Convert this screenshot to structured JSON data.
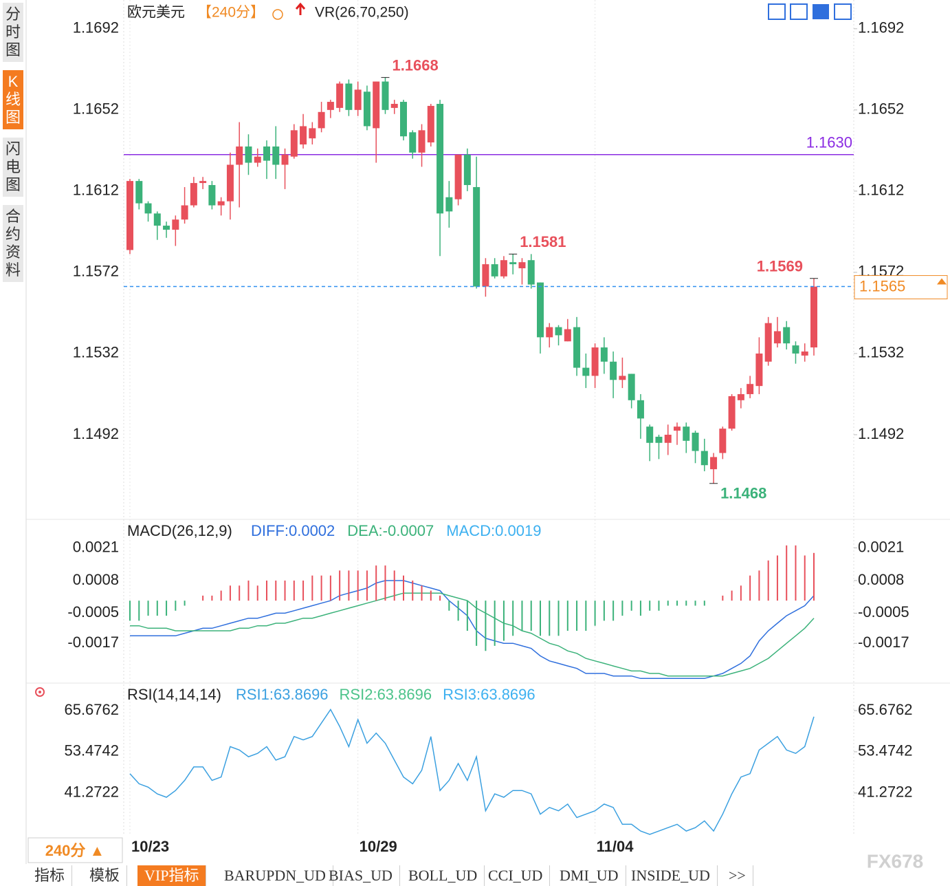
{
  "chart_data": [
    {
      "type": "candlestick",
      "title": "欧元美元",
      "period": "【240分】",
      "indicator": "VR(26,70,250)",
      "up_color": "#e8505b",
      "down_color": "#3bb27a",
      "ylim": [
        1.1452,
        1.1696
      ],
      "yticks": [
        1.1692,
        1.1652,
        1.1612,
        1.1572,
        1.1532,
        1.1492
      ],
      "categories": [
        "10/23",
        null,
        null,
        null,
        null,
        null,
        null,
        null,
        null,
        null,
        null,
        null,
        null,
        null,
        null,
        null,
        null,
        null,
        null,
        null,
        null,
        null,
        null,
        null,
        null,
        "10/29",
        null,
        null,
        null,
        null,
        null,
        null,
        null,
        null,
        null,
        null,
        null,
        null,
        null,
        null,
        null,
        null,
        null,
        null,
        null,
        null,
        null,
        null,
        null,
        null,
        null,
        "11/04",
        null,
        null,
        null,
        null,
        null,
        null,
        null,
        null,
        null,
        null,
        null,
        null,
        null,
        null,
        null,
        null,
        null,
        null,
        null,
        null,
        null,
        null,
        null,
        null
      ],
      "open": [
        1.1583,
        1.1617,
        1.1606,
        1.1601,
        1.1595,
        1.1593,
        1.1598,
        1.1605,
        1.1616,
        1.1615,
        1.1605,
        1.1607,
        1.1625,
        1.1634,
        1.1626,
        1.1634,
        1.1634,
        1.1625,
        1.1629,
        1.1635,
        1.1638,
        1.1643,
        1.1652,
        1.1653,
        1.1665,
        1.1652,
        1.1661,
        1.1643,
        1.1666,
        1.1653,
        1.1656,
        1.1641,
        1.1631,
        1.1636,
        1.1655,
        1.1609,
        1.1608,
        1.163,
        1.1614,
        1.1565,
        1.1576,
        1.157,
        1.1577,
        1.1574,
        1.1578,
        1.1567,
        1.154,
        1.1545,
        1.1538,
        1.1545,
        1.1525,
        1.1521,
        1.1535,
        1.1528,
        1.1519,
        1.1522,
        1.1509,
        1.1496,
        1.1491,
        1.1488,
        1.1494,
        1.1496,
        1.1493,
        1.1484,
        1.1475,
        1.1483,
        1.1495,
        1.1509,
        1.1512,
        1.1516,
        1.1528,
        1.1537,
        1.1545,
        1.1536,
        1.1531,
        1.1535
      ],
      "high": [
        1.1618,
        1.1618,
        1.1607,
        1.1602,
        1.1597,
        1.16,
        1.1614,
        1.1619,
        1.1619,
        1.1617,
        1.1609,
        1.1631,
        1.1646,
        1.164,
        1.1633,
        1.1637,
        1.1644,
        1.1633,
        1.1645,
        1.165,
        1.1646,
        1.1656,
        1.1657,
        1.1666,
        1.1667,
        1.1666,
        1.1664,
        1.1666,
        1.1668,
        1.1657,
        1.1657,
        1.1642,
        1.1645,
        1.1655,
        1.1657,
        1.1617,
        1.163,
        1.1633,
        1.1629,
        1.1579,
        1.1579,
        1.158,
        1.1581,
        1.1579,
        1.1581,
        1.1567,
        1.1547,
        1.1546,
        1.1549,
        1.155,
        1.1532,
        1.1537,
        1.154,
        1.1533,
        1.153,
        1.1522,
        1.1512,
        1.1497,
        1.1492,
        1.1497,
        1.1498,
        1.1498,
        1.1494,
        1.149,
        1.1483,
        1.1496,
        1.1512,
        1.1515,
        1.1521,
        1.154,
        1.155,
        1.155,
        1.1548,
        1.1538,
        1.1537,
        1.1569
      ],
      "low": [
        1.1581,
        1.1603,
        1.1597,
        1.1588,
        1.1589,
        1.1585,
        1.1596,
        1.1604,
        1.1613,
        1.1603,
        1.16,
        1.1598,
        1.1604,
        1.162,
        1.1624,
        1.1618,
        1.1618,
        1.1613,
        1.1628,
        1.1633,
        1.1635,
        1.1641,
        1.1648,
        1.1651,
        1.1649,
        1.1649,
        1.1642,
        1.1626,
        1.165,
        1.165,
        1.1637,
        1.1628,
        1.1624,
        1.1634,
        1.158,
        1.1594,
        1.1605,
        1.1612,
        1.1564,
        1.156,
        1.1569,
        1.1569,
        1.1571,
        1.1566,
        1.1564,
        1.1532,
        1.1535,
        1.1536,
        1.1538,
        1.1521,
        1.1515,
        1.1515,
        1.1522,
        1.151,
        1.1515,
        1.1505,
        1.149,
        1.1479,
        1.148,
        1.1482,
        1.1487,
        1.1483,
        1.1478,
        1.1474,
        1.1468,
        1.148,
        1.1494,
        1.1505,
        1.151,
        1.1512,
        1.1526,
        1.1535,
        1.1534,
        1.1527,
        1.1528,
        1.1531
      ],
      "close": [
        1.1617,
        1.1606,
        1.1601,
        1.1595,
        1.1593,
        1.1598,
        1.1605,
        1.1616,
        1.1617,
        1.1605,
        1.1607,
        1.1625,
        1.1634,
        1.1626,
        1.1629,
        1.1627,
        1.1625,
        1.163,
        1.1642,
        1.1644,
        1.1643,
        1.1651,
        1.1656,
        1.1665,
        1.1652,
        1.1662,
        1.1644,
        1.1666,
        1.1652,
        1.1655,
        1.1639,
        1.1631,
        1.1642,
        1.1654,
        1.1601,
        1.1602,
        1.163,
        1.1615,
        1.1565,
        1.1576,
        1.157,
        1.1578,
        1.1576,
        1.1577,
        1.1566,
        1.154,
        1.1545,
        1.1541,
        1.1544,
        1.1525,
        1.1521,
        1.1535,
        1.1528,
        1.1519,
        1.1521,
        1.1509,
        1.15,
        1.1488,
        1.1488,
        1.1492,
        1.1496,
        1.1489,
        1.1484,
        1.1477,
        1.1481,
        1.1495,
        1.1511,
        1.1512,
        1.1517,
        1.1532,
        1.1547,
        1.1543,
        1.1537,
        1.1532,
        1.1533,
        1.1565
      ],
      "extreme_labels": [
        1.1668,
        1.1581,
        1.1468,
        1.1569
      ],
      "reference_line": {
        "value": 1.163,
        "label": "1.1630"
      },
      "reference_color": "#8a2be2",
      "last_price": 1.1565,
      "last_color": "#f08a24"
    },
    {
      "type": "macd",
      "title": "MACD(26,12,9)",
      "ylim": [
        -0.0032,
        0.0031
      ],
      "yticks": [
        0.0021,
        0.0008,
        -0.0005,
        -0.0017
      ],
      "up_color": "#e8505b",
      "down_color": "#3bb27a",
      "series": [
        {
          "name": "DIFF:0.0002",
          "type": "line",
          "color": "#2f6fdd",
          "values": [
            -0.0014,
            -0.0014,
            -0.0014,
            -0.0014,
            -0.0014,
            -0.0014,
            -0.0013,
            -0.0012,
            -0.0011,
            -0.0011,
            -0.001,
            -0.0009,
            -0.0008,
            -0.0007,
            -0.0007,
            -0.0006,
            -0.0005,
            -0.0005,
            -0.0004,
            -0.0003,
            -0.0002,
            -0.0001,
            0,
            0.0002,
            0.0003,
            0.0004,
            0.0005,
            0.0007,
            0.0008,
            0.0008,
            0.0008,
            0.0007,
            0.0006,
            0.0005,
            0.0004,
            0,
            -0.0003,
            -0.0006,
            -0.0012,
            -0.0015,
            -0.0016,
            -0.0017,
            -0.0017,
            -0.0018,
            -0.0019,
            -0.0022,
            -0.0024,
            -0.0025,
            -0.0026,
            -0.0027,
            -0.0029,
            -0.0029,
            -0.0029,
            -0.003,
            -0.003,
            -0.003,
            -0.0031,
            -0.0031,
            -0.0031,
            -0.0031,
            -0.0031,
            -0.0031,
            -0.0031,
            -0.0031,
            -0.003,
            -0.0029,
            -0.0027,
            -0.0025,
            -0.0022,
            -0.0016,
            -0.0012,
            -0.0009,
            -0.0006,
            -0.0004,
            -0.0002,
            0.0002
          ]
        },
        {
          "name": "DEA:-0.0007",
          "type": "line",
          "color": "#3bb27a",
          "values": [
            -0.001,
            -0.001,
            -0.0011,
            -0.0011,
            -0.0011,
            -0.0012,
            -0.0012,
            -0.0012,
            -0.0012,
            -0.0012,
            -0.0012,
            -0.0012,
            -0.0011,
            -0.0011,
            -0.001,
            -0.001,
            -0.0009,
            -0.0009,
            -0.0008,
            -0.0007,
            -0.0007,
            -0.0006,
            -0.0005,
            -0.0004,
            -0.0003,
            -0.0002,
            -0.0001,
            0,
            0.0001,
            0.0002,
            0.0003,
            0.0003,
            0.0003,
            0.0003,
            0.0003,
            0.0002,
            0.0001,
            0,
            -0.0003,
            -0.0005,
            -0.0007,
            -0.0009,
            -0.001,
            -0.0012,
            -0.0013,
            -0.0015,
            -0.0017,
            -0.0018,
            -0.002,
            -0.0021,
            -0.0023,
            -0.0024,
            -0.0025,
            -0.0026,
            -0.0027,
            -0.0028,
            -0.0028,
            -0.0029,
            -0.0029,
            -0.003,
            -0.003,
            -0.003,
            -0.003,
            -0.003,
            -0.003,
            -0.003,
            -0.0029,
            -0.0028,
            -0.0027,
            -0.0025,
            -0.0023,
            -0.002,
            -0.0017,
            -0.0014,
            -0.0011,
            -0.0007
          ]
        },
        {
          "name": "MACD:0.0019",
          "type": "bar",
          "color": "#3cb0f0",
          "values": [
            -0.0008,
            -0.0008,
            -0.0006,
            -0.0006,
            -0.0006,
            -0.0004,
            -0.0002,
            0,
            0.0002,
            0.0002,
            0.0004,
            0.0006,
            0.0006,
            0.0008,
            0.0006,
            0.0008,
            0.0008,
            0.0008,
            0.0008,
            0.0008,
            0.001,
            0.001,
            0.001,
            0.0012,
            0.0012,
            0.0012,
            0.0012,
            0.0014,
            0.0014,
            0.0012,
            0.001,
            0.0008,
            0.0006,
            0.0004,
            0.0002,
            -0.0004,
            -0.0008,
            -0.0012,
            -0.0018,
            -0.002,
            -0.0018,
            -0.0016,
            -0.0014,
            -0.0012,
            -0.0012,
            -0.0014,
            -0.0014,
            -0.0014,
            -0.0012,
            -0.0012,
            -0.0012,
            -0.001,
            -0.0008,
            -0.0008,
            -0.0006,
            -0.0004,
            -0.0006,
            -0.0004,
            -0.0004,
            -0.0002,
            -0.0002,
            -0.0002,
            -0.0002,
            -0.0002,
            0,
            0.0002,
            0.0004,
            0.0006,
            0.001,
            0.0012,
            0.0016,
            0.0018,
            0.0022,
            0.0022,
            0.0018,
            0.0019
          ]
        }
      ]
    },
    {
      "type": "line",
      "title": "RSI(14,14,14)",
      "ylim": [
        28.6,
        72.4
      ],
      "yticks": [
        65.6762,
        53.4742,
        41.2722
      ],
      "series": [
        {
          "name": "RSI1:63.8696",
          "color": "#3ba0e0",
          "values": [
            47,
            44,
            43,
            41,
            40,
            42,
            45,
            49,
            49,
            45,
            46,
            55,
            54,
            52,
            53,
            55,
            51,
            52,
            58,
            57,
            58,
            62,
            66,
            61,
            55,
            63,
            56,
            59,
            56,
            51,
            46,
            44,
            48,
            58,
            42,
            45,
            50,
            45,
            52,
            36,
            41,
            40,
            42,
            42,
            41,
            35,
            37,
            36,
            38,
            34,
            35,
            36,
            38,
            37,
            32,
            32,
            30,
            29,
            30,
            31,
            32,
            30,
            31,
            33,
            30,
            35,
            41,
            46,
            47,
            54,
            56,
            58,
            54,
            53,
            55,
            63.8696
          ]
        },
        {
          "name": "RSI2:63.8696",
          "color": "#4cc38a"
        },
        {
          "name": "RSI3:63.8696",
          "color": "#3cb0f0"
        }
      ]
    }
  ],
  "sidebar": [
    "分时图",
    "K线图",
    "闪电图",
    "合约资料"
  ],
  "period_button": "240分 ▲",
  "tabs": [
    "指标",
    "模板",
    "VIP指标",
    "BARUPDN_UD",
    "BIAS_UD",
    "BOLL_UD",
    "CCI_UD",
    "DMI_UD",
    "INSIDE_UD",
    ">>"
  ],
  "watermark": "FX678"
}
